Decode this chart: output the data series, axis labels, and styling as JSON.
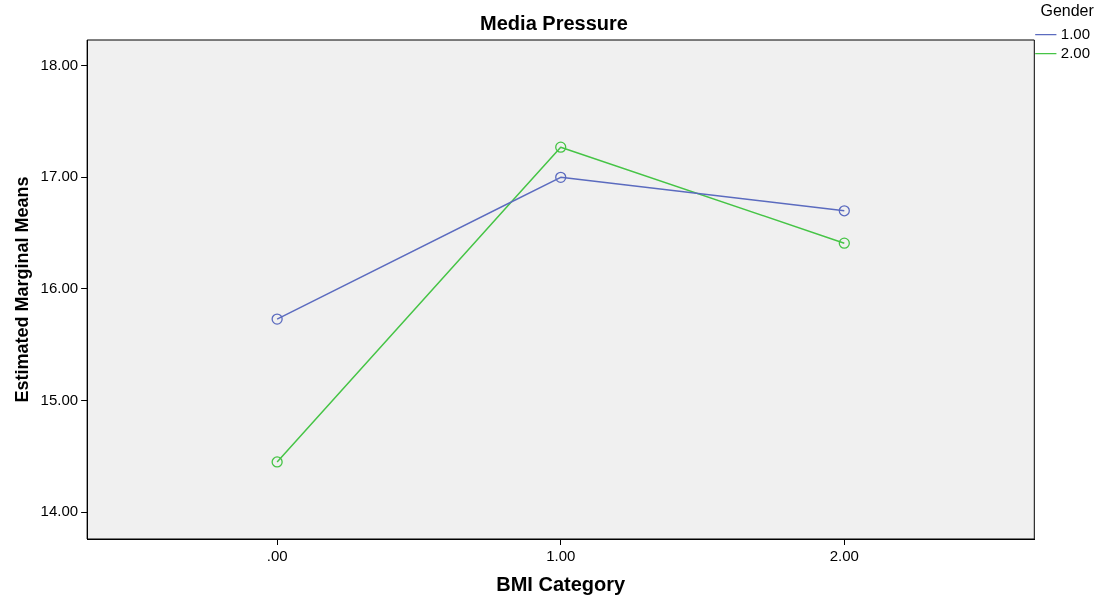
{
  "chart_data": {
    "type": "line",
    "title": "Media Pressure",
    "xlabel": "BMI Category",
    "ylabel": "Estimated Marginal Means",
    "legend_title": "Gender",
    "categories": [
      ".00",
      "1.00",
      "2.00"
    ],
    "series": [
      {
        "name": "1.00",
        "color": "#5b6bbf",
        "values": [
          15.73,
          17.0,
          16.7
        ]
      },
      {
        "name": "2.00",
        "color": "#46c446",
        "values": [
          14.45,
          17.27,
          16.41
        ]
      }
    ],
    "ylim": [
      13.76,
      18.23
    ],
    "yticks": [
      {
        "value": 14,
        "label": "14.00"
      },
      {
        "value": 15,
        "label": "15.00"
      },
      {
        "value": 16,
        "label": "16.00"
      },
      {
        "value": 17,
        "label": "17.00"
      },
      {
        "value": 18,
        "label": "18.00"
      }
    ],
    "grid": false,
    "legend": "top right",
    "marker": "circle",
    "line_style": "solid"
  }
}
